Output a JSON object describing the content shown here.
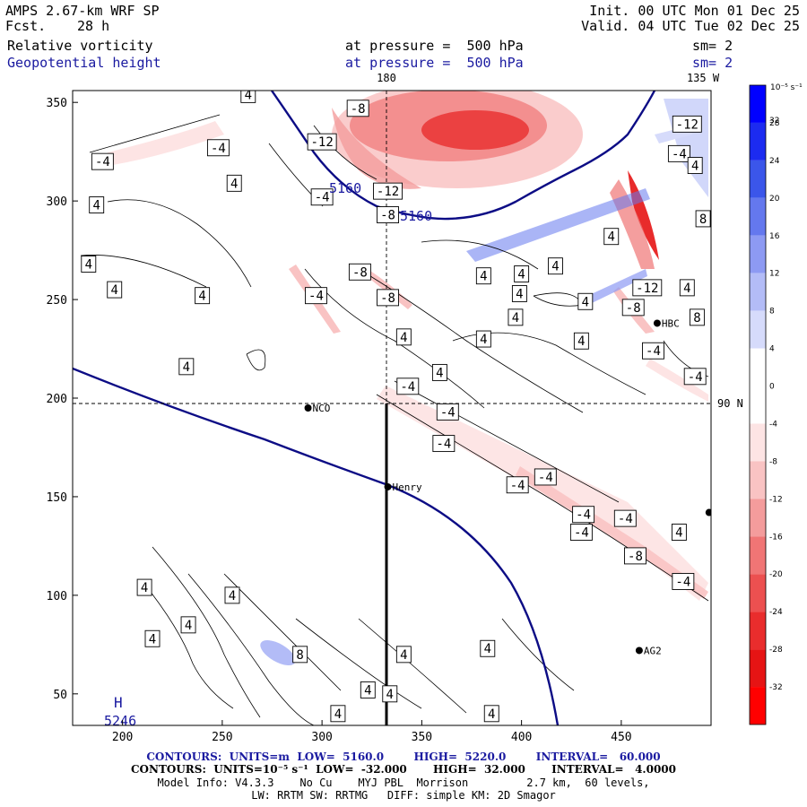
{
  "header": {
    "model": "AMPS 2.67-km WRF SP",
    "fcst_label": "Fcst.",
    "fcst_value": "28 h",
    "init": "Init. 00 UTC Mon 01 Dec 25",
    "valid": "Valid. 04 UTC Tue 02 Dec 25",
    "field1": "Relative vorticity",
    "field1_level": "at pressure =  500 hPa",
    "field1_sm": "sm= 2",
    "field2": "Geopotential height",
    "field2_level": "at pressure =  500 hPa",
    "field2_sm": "sm= 2"
  },
  "map": {
    "lon_180": "180",
    "lon_135w": "135 W",
    "lat_90n": "90 N",
    "high_marker": "H",
    "high_value": "5246",
    "height_label_1": "5160",
    "height_label_2": "5160",
    "stations": [
      {
        "name": "NCO",
        "x": 293,
        "y": 195
      },
      {
        "name": "Henry",
        "x": 333,
        "y": 155
      },
      {
        "name": "HBC",
        "x": 468,
        "y": 238
      },
      {
        "name": "AG2",
        "x": 459,
        "y": 72
      }
    ],
    "edge_dot": {
      "x": 494,
      "y": 142
    },
    "contour_labels": [
      {
        "t": "-8",
        "x": 318,
        "y": 347
      },
      {
        "t": "-12",
        "x": 300,
        "y": 330
      },
      {
        "t": "-12",
        "x": 333,
        "y": 305
      },
      {
        "t": "-4",
        "x": 300,
        "y": 302
      },
      {
        "t": "-8",
        "x": 333,
        "y": 293
      },
      {
        "t": "-8",
        "x": 319,
        "y": 264
      },
      {
        "t": "-8",
        "x": 333,
        "y": 251
      },
      {
        "t": "-4",
        "x": 297,
        "y": 252
      },
      {
        "t": "4",
        "x": 263,
        "y": 354
      },
      {
        "t": "-4",
        "x": 248,
        "y": 327
      },
      {
        "t": "-4",
        "x": 190,
        "y": 320
      },
      {
        "t": "4",
        "x": 256,
        "y": 309
      },
      {
        "t": "4",
        "x": 187,
        "y": 298
      },
      {
        "t": "4",
        "x": 183,
        "y": 268
      },
      {
        "t": "4",
        "x": 196,
        "y": 255
      },
      {
        "t": "4",
        "x": 240,
        "y": 252
      },
      {
        "t": "4",
        "x": 232,
        "y": 216
      },
      {
        "t": "4",
        "x": 341,
        "y": 231
      },
      {
        "t": "4",
        "x": 359,
        "y": 213
      },
      {
        "t": "-4",
        "x": 343,
        "y": 206
      },
      {
        "t": "-4",
        "x": 363,
        "y": 193
      },
      {
        "t": "-4",
        "x": 361,
        "y": 177
      },
      {
        "t": "4",
        "x": 445,
        "y": 282
      },
      {
        "t": "4",
        "x": 417,
        "y": 267
      },
      {
        "t": "4",
        "x": 400,
        "y": 263
      },
      {
        "t": "4",
        "x": 381,
        "y": 262
      },
      {
        "t": "4",
        "x": 399,
        "y": 253
      },
      {
        "t": "4",
        "x": 432,
        "y": 249
      },
      {
        "t": "4",
        "x": 397,
        "y": 241
      },
      {
        "t": "4",
        "x": 381,
        "y": 230
      },
      {
        "t": "4",
        "x": 430,
        "y": 229
      },
      {
        "t": "-12",
        "x": 483,
        "y": 339
      },
      {
        "t": "-4",
        "x": 479,
        "y": 324
      },
      {
        "t": "4",
        "x": 487,
        "y": 318
      },
      {
        "t": "-12",
        "x": 463,
        "y": 256
      },
      {
        "t": "4",
        "x": 483,
        "y": 256
      },
      {
        "t": "-8",
        "x": 456,
        "y": 246
      },
      {
        "t": "8",
        "x": 488,
        "y": 241
      },
      {
        "t": "-4",
        "x": 466,
        "y": 224
      },
      {
        "t": "-4",
        "x": 487,
        "y": 211
      },
      {
        "t": "8",
        "x": 491,
        "y": 291
      },
      {
        "t": "-4",
        "x": 412,
        "y": 160
      },
      {
        "t": "-4",
        "x": 398,
        "y": 156
      },
      {
        "t": "-4",
        "x": 431,
        "y": 141
      },
      {
        "t": "-4",
        "x": 452,
        "y": 139
      },
      {
        "t": "-4",
        "x": 430,
        "y": 132
      },
      {
        "t": "4",
        "x": 479,
        "y": 132
      },
      {
        "t": "-8",
        "x": 457,
        "y": 120
      },
      {
        "t": "-4",
        "x": 481,
        "y": 107
      },
      {
        "t": "4",
        "x": 211,
        "y": 104
      },
      {
        "t": "4",
        "x": 255,
        "y": 100
      },
      {
        "t": "4",
        "x": 233,
        "y": 85
      },
      {
        "t": "4",
        "x": 215,
        "y": 78
      },
      {
        "t": "8",
        "x": 289,
        "y": 70
      },
      {
        "t": "4",
        "x": 341,
        "y": 70
      },
      {
        "t": "4",
        "x": 383,
        "y": 73
      },
      {
        "t": "4",
        "x": 323,
        "y": 52
      },
      {
        "t": "4",
        "x": 334,
        "y": 50
      },
      {
        "t": "4",
        "x": 308,
        "y": 40
      },
      {
        "t": "4",
        "x": 385,
        "y": 40
      }
    ]
  },
  "chart_data": {
    "type": "heatmap",
    "xlim": [
      175,
      495
    ],
    "ylim": [
      34,
      356
    ],
    "x_ticks": [
      200,
      250,
      300,
      350,
      400,
      450
    ],
    "y_ticks": [
      50,
      100,
      150,
      200,
      250,
      300,
      350
    ],
    "colorbar": {
      "units": "10⁻⁵ s⁻¹",
      "levels": [
        32,
        28,
        24,
        20,
        16,
        12,
        8,
        4,
        0,
        -4,
        -8,
        -12,
        -16,
        -20,
        -24,
        -28,
        -32
      ],
      "colors": [
        "#0000ff",
        "#1c2bf0",
        "#3b56ea",
        "#6478ee",
        "#8d9af3",
        "#b3bcf7",
        "#d6dbfb",
        "#ffffff",
        "#ffffff",
        "#fde4e4",
        "#f9c3c3",
        "#f49c9c",
        "#f07575",
        "#ec5050",
        "#e92d2d",
        "#e61414",
        "#ff0000"
      ]
    },
    "geopotential_contours": {
      "units": "m",
      "low": "5160.0",
      "high": "5220.0",
      "interval": "60.000"
    },
    "vorticity_contours": {
      "low": "-32.000",
      "high": "32.000",
      "interval": "4.0000"
    }
  },
  "footer": {
    "line1_contours": "CONTOURS:  UNITS=m  LOW=  5160.0",
    "line1_high": "HIGH=  5220.0",
    "line1_interval": "INTERVAL=   60.000",
    "line2_contours": "CONTOURS:  UNITS=10⁻⁵ s⁻¹  LOW=  -32.000",
    "line2_high": "HIGH=  32.000",
    "line2_interval": "INTERVAL=   4.0000",
    "line3": "Model Info: V4.3.3    No Cu    MYJ PBL  Morrison         2.7 km,  60 levels,",
    "line4": "LW: RRTM SW: RRTMG   DIFF: simple KM: 2D Smagor"
  }
}
